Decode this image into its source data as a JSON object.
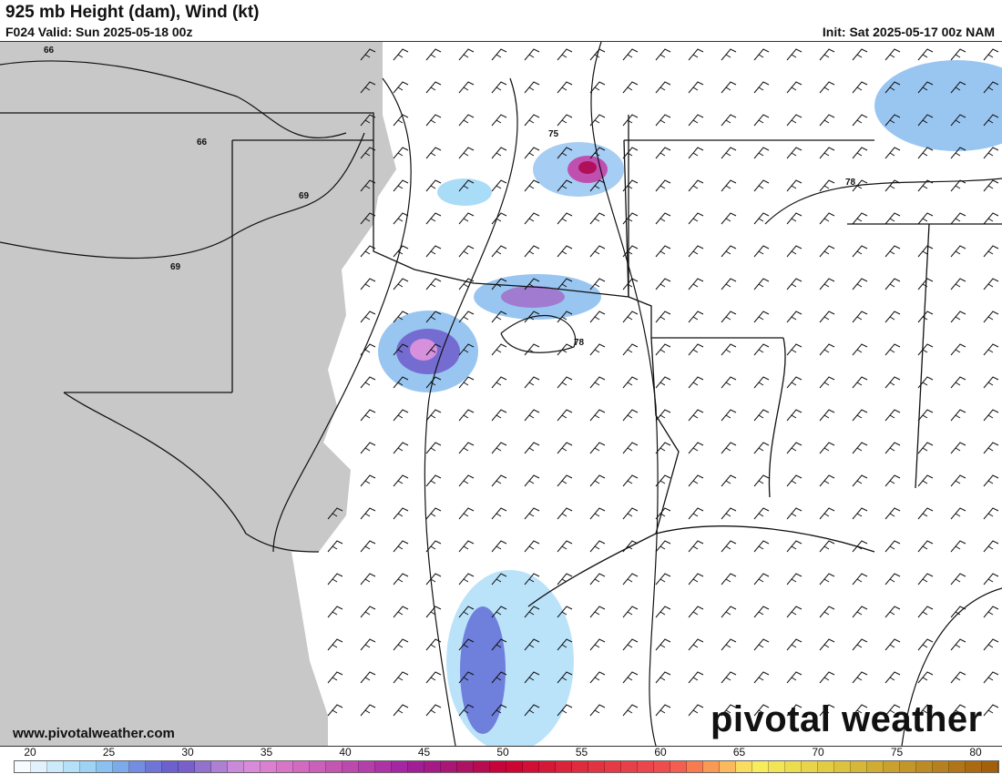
{
  "header": {
    "title": "925 mb Height (dam), Wind (kt)",
    "valid": "F024 Valid: Sun 2025-05-18 00z",
    "init": "Init: Sat 2025-05-17 00z NAM"
  },
  "map": {
    "contour_labels": [
      "66",
      "66",
      "69",
      "69",
      "75",
      "78",
      "78"
    ],
    "below_ground_color": "#c8c8c8",
    "icon": "wind-barb"
  },
  "footer": {
    "url": "www.pivotalweather.com",
    "logo": "pivotal weather"
  },
  "colorbar": {
    "unit": "kt",
    "min": 20,
    "max": 80,
    "labels": [
      "20",
      "25",
      "30",
      "35",
      "40",
      "45",
      "50",
      "55",
      "60",
      "65",
      "70",
      "75",
      "80"
    ],
    "stops": [
      [
        20,
        "#ffffff"
      ],
      [
        22,
        "#d8eefb"
      ],
      [
        24,
        "#a9dcf7"
      ],
      [
        26,
        "#80b8ee"
      ],
      [
        28,
        "#6f7fdc"
      ],
      [
        30,
        "#6a55c8"
      ],
      [
        32,
        "#a07bd0"
      ],
      [
        34,
        "#d690dc"
      ],
      [
        36,
        "#dc7acb"
      ],
      [
        40,
        "#c050b0"
      ],
      [
        44,
        "#a020a0"
      ],
      [
        48,
        "#b0105a"
      ],
      [
        50,
        "#cc0030"
      ],
      [
        55,
        "#e03040"
      ],
      [
        60,
        "#f05050"
      ],
      [
        62,
        "#f88a50"
      ],
      [
        64,
        "#f9c860"
      ],
      [
        65,
        "#f8f060"
      ],
      [
        70,
        "#e0c840"
      ],
      [
        75,
        "#c09028"
      ],
      [
        80,
        "#a05a08"
      ]
    ]
  }
}
